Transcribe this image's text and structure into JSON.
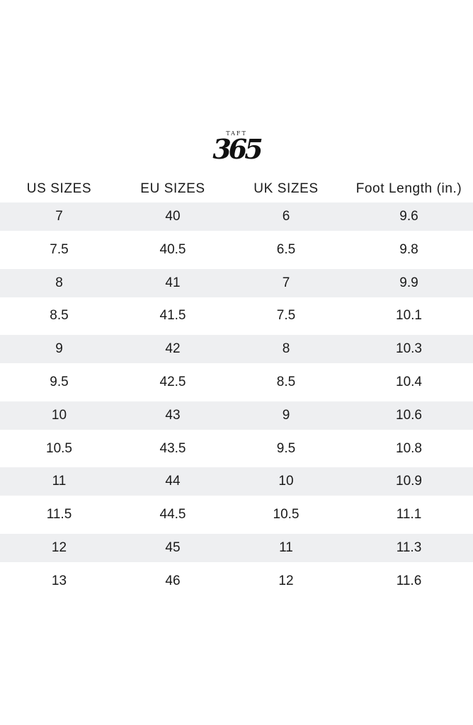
{
  "brand": {
    "top_text": "TAFT",
    "main_text": "365"
  },
  "table": {
    "headers": [
      "US SIZES",
      "EU SIZES",
      "UK SIZES",
      "Foot Length (in.)"
    ],
    "rows": [
      [
        "7",
        "40",
        "6",
        "9.6"
      ],
      [
        "7.5",
        "40.5",
        "6.5",
        "9.8"
      ],
      [
        "8",
        "41",
        "7",
        "9.9"
      ],
      [
        "8.5",
        "41.5",
        "7.5",
        "10.1"
      ],
      [
        "9",
        "42",
        "8",
        "10.3"
      ],
      [
        "9.5",
        "42.5",
        "8.5",
        "10.4"
      ],
      [
        "10",
        "43",
        "9",
        "10.6"
      ],
      [
        "10.5",
        "43.5",
        "9.5",
        "10.8"
      ],
      [
        "11",
        "44",
        "10",
        "10.9"
      ],
      [
        "11.5",
        "44.5",
        "10.5",
        "11.1"
      ],
      [
        "12",
        "45",
        "11",
        "11.3"
      ],
      [
        "13",
        "46",
        "12",
        "11.6"
      ]
    ]
  },
  "colors": {
    "shaded_row": "#eeeff1",
    "text": "#1a1a1a",
    "background": "#ffffff"
  }
}
